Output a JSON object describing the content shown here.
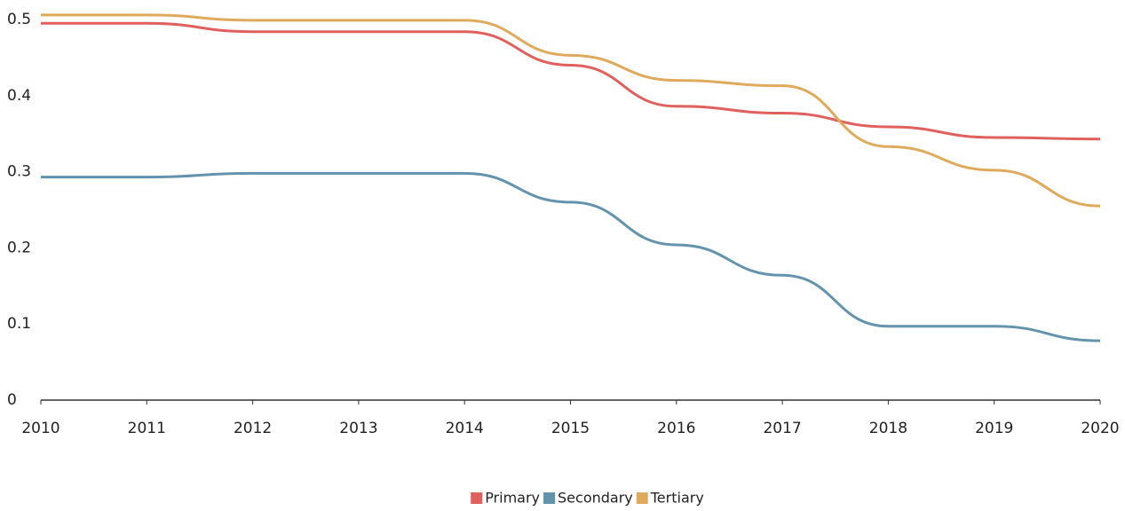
{
  "chart_data": {
    "type": "line",
    "x": [
      2010,
      2011,
      2012,
      2013,
      2014,
      2015,
      2016,
      2017,
      2018,
      2019,
      2020
    ],
    "series": [
      {
        "name": "Primary",
        "color": "#e0605e",
        "values": [
          0.495,
          0.495,
          0.484,
          0.484,
          0.484,
          0.44,
          0.386,
          0.377,
          0.359,
          0.345,
          0.343
        ]
      },
      {
        "name": "Secondary",
        "color": "#6393ad",
        "values": [
          0.293,
          0.293,
          0.298,
          0.298,
          0.298,
          0.26,
          0.204,
          0.164,
          0.097,
          0.097,
          0.078
        ]
      },
      {
        "name": "Tertiary",
        "color": "#e0aa5c",
        "values": [
          0.506,
          0.506,
          0.499,
          0.499,
          0.499,
          0.453,
          0.42,
          0.413,
          0.333,
          0.302,
          0.255
        ]
      }
    ],
    "xlim": [
      2010,
      2020
    ],
    "xticks": [
      2010,
      2011,
      2012,
      2013,
      2014,
      2015,
      2016,
      2017,
      2018,
      2019,
      2020
    ],
    "ylim": [
      0,
      0.5
    ],
    "yticks": [
      0,
      0.1,
      0.2,
      0.3,
      0.4,
      0.5
    ],
    "grid": false,
    "legend": "bottom"
  }
}
